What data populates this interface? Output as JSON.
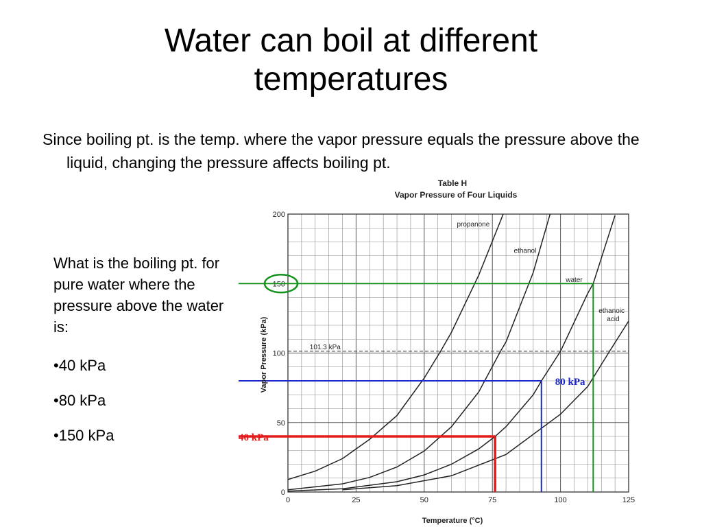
{
  "slide": {
    "title_line1": "Water can boil at different",
    "title_line2": "temperatures",
    "intro": "Since boiling pt. is the temp. where the vapor pressure equals the pressure above the liquid, changing the pressure affects boiling pt.",
    "question": "What is the boiling pt. for pure water where the pressure above the water is:",
    "answers": [
      "•40 kPa",
      "•80 kPa",
      "•150 kPa"
    ]
  },
  "chart_data": {
    "type": "line",
    "table_label": "Table H",
    "title": "Vapor Pressure of Four Liquids",
    "xlabel": "Temperature (°C)",
    "ylabel": "Vapor Pressure (kPa)",
    "xlim": [
      0,
      125
    ],
    "ylim": [
      0,
      200
    ],
    "x_ticks": [
      0,
      25,
      50,
      75,
      100,
      125
    ],
    "y_ticks": [
      0,
      50,
      100,
      150,
      200
    ],
    "grid": true,
    "series": [
      {
        "name": "propanone",
        "color": "#222222",
        "x": [
          0,
          10,
          20,
          30,
          40,
          50,
          56,
          60,
          70,
          80,
          90
        ],
        "y": [
          9,
          15,
          24,
          38,
          55,
          82,
          101.3,
          115,
          156,
          205,
          260
        ]
      },
      {
        "name": "ethanol",
        "color": "#222222",
        "x": [
          0,
          20,
          30,
          40,
          50,
          60,
          70,
          78,
          80,
          90,
          100
        ],
        "y": [
          1.6,
          5.9,
          10.5,
          18,
          29.5,
          47,
          72,
          101.3,
          108,
          158,
          226
        ]
      },
      {
        "name": "water",
        "color": "#222222",
        "x": [
          0,
          20,
          40,
          50,
          60,
          70,
          76,
          80,
          90,
          93,
          100,
          110,
          112,
          120
        ],
        "y": [
          0.6,
          2.3,
          7.4,
          12.3,
          20,
          31,
          40,
          47,
          70,
          80,
          101.3,
          143,
          150,
          199
        ]
      },
      {
        "name": "ethanoic acid",
        "color": "#222222",
        "x": [
          20,
          40,
          60,
          80,
          100,
          110,
          118,
          125
        ],
        "y": [
          1.6,
          4.6,
          11.7,
          27,
          56,
          76,
          101.3,
          123
        ]
      }
    ],
    "reference_lines": [
      {
        "label": "101.3 kPa",
        "y": 101.3,
        "style": "dashed",
        "color": "#333333"
      }
    ],
    "annotations": [
      {
        "label": "40 kPa",
        "pressure": 40,
        "temperature": 76,
        "color": "#e21b1b"
      },
      {
        "label": "80 kPa",
        "pressure": 80,
        "temperature": 93,
        "color": "#1a27c9"
      },
      {
        "pressure": 150,
        "temperature": 112,
        "color": "#14931e"
      }
    ]
  }
}
